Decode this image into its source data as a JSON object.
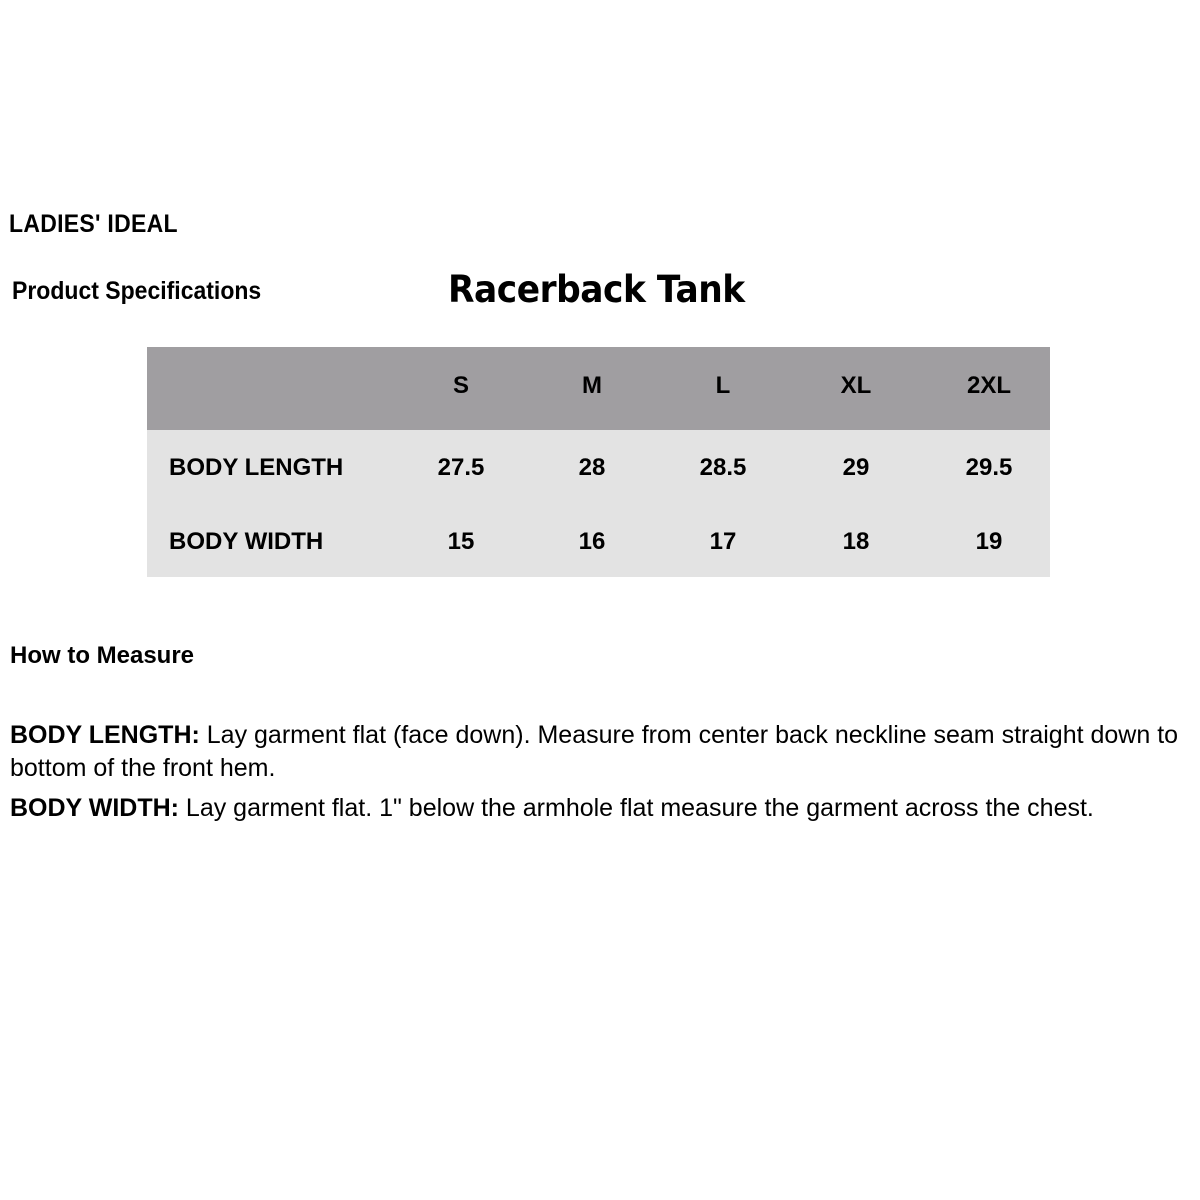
{
  "brand": "LADIES' IDEAL",
  "section_title": "Product Specifications",
  "product_title": "Racerback Tank",
  "colors": {
    "header_bg": "#a09ea1",
    "body_bg": "#e3e3e3"
  },
  "table": {
    "sizes": [
      "S",
      "M",
      "L",
      "XL",
      "2XL"
    ],
    "rows": [
      {
        "label": "BODY LENGTH",
        "values": [
          "27.5",
          "28",
          "28.5",
          "29",
          "29.5"
        ]
      },
      {
        "label": "BODY WIDTH",
        "values": [
          "15",
          "16",
          "17",
          "18",
          "19"
        ]
      }
    ]
  },
  "how_to_measure": {
    "heading": "How to Measure",
    "items": [
      {
        "term": "BODY LENGTH:",
        "text": " Lay garment flat (face down). Measure from center back neckline seam straight down to bottom of the front hem."
      },
      {
        "term": "BODY WIDTH:",
        "text": " Lay garment flat. 1\" below the armhole flat measure the garment across the chest."
      }
    ]
  }
}
